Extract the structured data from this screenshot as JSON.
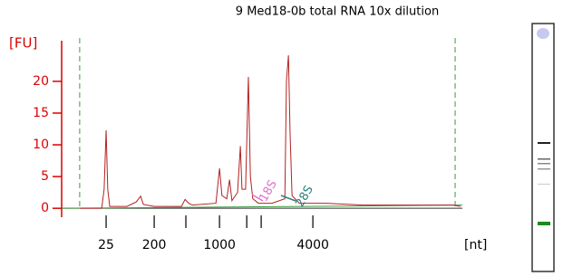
{
  "chart_data": {
    "type": "line",
    "title": "9 Med18-0b total RNA 10x dilution",
    "ylabel": "[FU]",
    "xlabel": "[nt]",
    "xlim": [
      0,
      100
    ],
    "ylim": [
      -1.4,
      26.4
    ],
    "yticks": [
      0,
      5,
      10,
      15,
      20
    ],
    "xticks": [
      {
        "value": 11.1,
        "label": "25"
      },
      {
        "value": 23.1,
        "label": "200"
      },
      {
        "value": 31.0,
        "label": null
      },
      {
        "value": 39.4,
        "label": "1000"
      },
      {
        "value": 46.2,
        "label": null
      },
      {
        "value": 49.8,
        "label": null
      },
      {
        "value": 62.7,
        "label": "4000"
      }
    ],
    "markers": [
      4.5,
      98.2
    ],
    "annotations": [
      "18S",
      "28S"
    ],
    "series": [
      {
        "color": "#b22222",
        "x": [
          4.5,
          10.0,
          10.6,
          11.1,
          11.5,
          12.0,
          16.3,
          18.6,
          19.7,
          20.4,
          23.1,
          29.9,
          30.8,
          31.7,
          32.6,
          38.5,
          39.4,
          40.0,
          41.2,
          41.9,
          42.5,
          43.9,
          44.6,
          45.0,
          45.9,
          46.6,
          47.1,
          47.7,
          49.1,
          52.5,
          55.7,
          56.1,
          56.6,
          57.0,
          57.5,
          59.3,
          66.1,
          75.1,
          90.9,
          97.7,
          99.5
        ],
        "values": [
          0,
          0,
          3,
          12.3,
          3,
          0.3,
          0.3,
          1,
          1.9,
          0.6,
          0.3,
          0.3,
          1.4,
          0.8,
          0.5,
          0.8,
          6.3,
          2,
          1.5,
          4.5,
          1.2,
          2.5,
          9.8,
          3,
          3,
          20.7,
          5,
          1.5,
          0.8,
          0.8,
          1.5,
          20,
          24.1,
          12,
          2,
          0.8,
          0.8,
          0.5,
          0.5,
          0.5,
          0.3
        ]
      },
      {
        "color": "#3a9a3a",
        "x": [
          0,
          100
        ],
        "values": [
          0,
          0.5
        ]
      }
    ]
  }
}
